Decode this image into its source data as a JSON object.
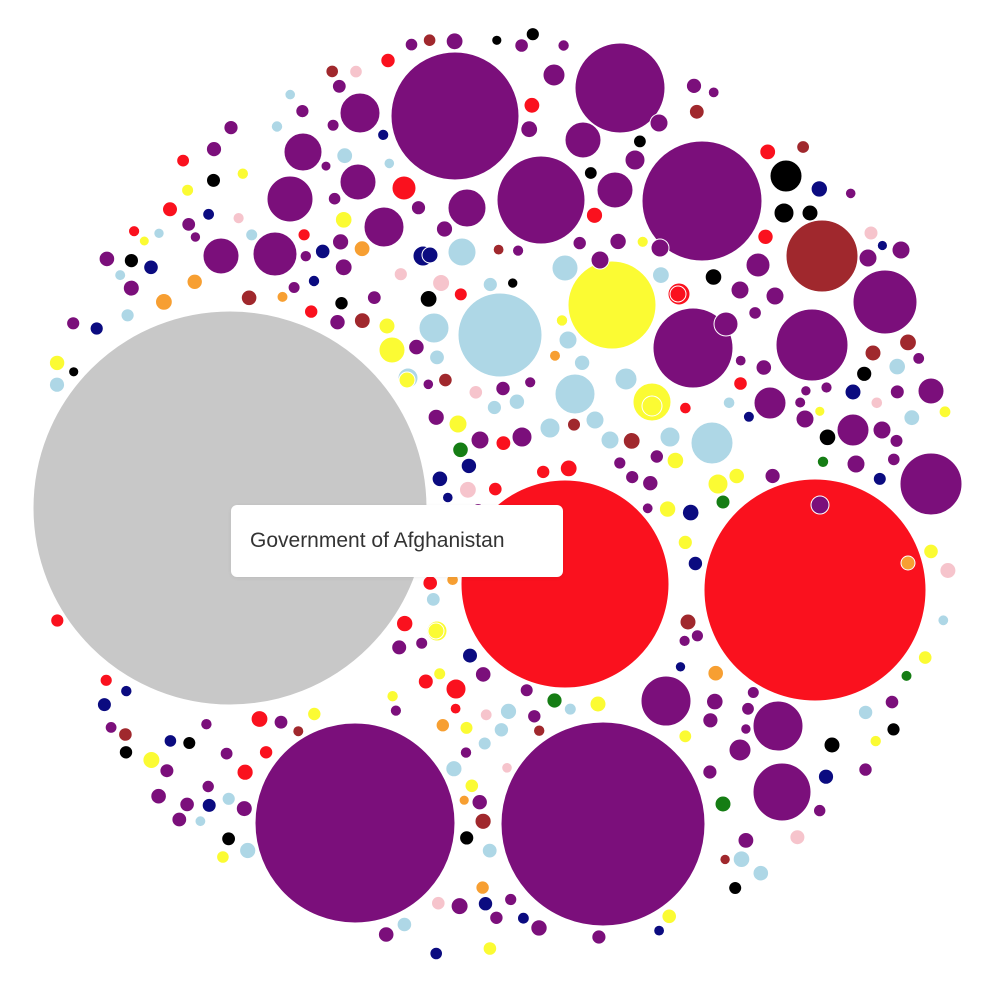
{
  "tooltip": {
    "text": "Government of Afghanistan"
  },
  "colors": {
    "gray": "#c8c8c8",
    "purple": "#7b0f7b",
    "red": "#fa111e",
    "yellow": "#fbfb33",
    "lightblue": "#aed7e6",
    "navy": "#0b0b80",
    "brown": "#a0282d",
    "black": "#000000",
    "pink": "#f6c4cc",
    "orange": "#f79f32",
    "green": "#157d14"
  },
  "chart_data": {
    "type": "bubble",
    "title": "",
    "hovered": "Government of Afghanistan",
    "bubbles": [
      {
        "id": "government-of-afghanistan",
        "color": "gray",
        "size": 197
      },
      {
        "color": "red",
        "size": 111
      },
      {
        "color": "red",
        "size": 104
      },
      {
        "color": "purple",
        "size": 102
      },
      {
        "color": "purple",
        "size": 100
      },
      {
        "color": "purple",
        "size": 64
      },
      {
        "color": "purple",
        "size": 60
      },
      {
        "color": "purple",
        "size": 45
      },
      {
        "color": "purple",
        "size": 44
      },
      {
        "color": "yellow",
        "size": 44
      },
      {
        "color": "lightblue",
        "size": 42
      },
      {
        "color": "purple",
        "size": 40
      },
      {
        "color": "brown",
        "size": 36
      },
      {
        "color": "purple",
        "size": 36
      },
      {
        "color": "purple",
        "size": 32
      },
      {
        "color": "purple",
        "size": 31
      },
      {
        "color": "purple",
        "size": 29
      },
      {
        "color": "purple",
        "size": 25
      },
      {
        "color": "purple",
        "size": 25
      },
      {
        "color": "purple",
        "size": 23
      },
      {
        "color": "purple",
        "size": 22
      },
      {
        "color": "lightblue",
        "size": 21
      },
      {
        "color": "purple",
        "size": 20
      },
      {
        "color": "purple",
        "size": 20
      },
      {
        "color": "lightblue",
        "size": 20
      },
      {
        "color": "yellow",
        "size": 19
      },
      {
        "color": "purple",
        "size": 19
      },
      {
        "color": "purple",
        "size": 19
      },
      {
        "color": "purple",
        "size": 18
      },
      {
        "color": "purple",
        "size": 18
      },
      {
        "color": "purple",
        "size": 18
      },
      {
        "color": "purple",
        "size": 18
      },
      {
        "color": "purple",
        "size": 16
      },
      {
        "color": "black",
        "size": 16
      },
      {
        "color": "purple",
        "size": 16
      },
      {
        "color": "lightblue",
        "size": 15
      },
      {
        "color": "lightblue",
        "size": 14
      },
      {
        "color": "red",
        "size": 12
      },
      {
        "color": "yellow",
        "size": 13
      },
      {
        "color": "lightblue",
        "size": 13
      },
      {
        "color": "purple",
        "size": 13
      },
      {
        "color": "purple",
        "size": 12
      },
      {
        "color": "purple",
        "size": 12
      },
      {
        "color": "red",
        "size": 11
      },
      {
        "color": "red",
        "size": 10
      },
      {
        "color": "navy",
        "size": 10
      },
      {
        "color": "black",
        "size": 10
      },
      {
        "color": "lightblue",
        "size": 10
      },
      {
        "color": "yellow",
        "size": 10
      },
      {
        "color": "purple",
        "size": 11
      },
      {
        "color": "purple",
        "size": 11
      },
      {
        "color": "lightblue",
        "size": 11
      },
      {
        "color": "lightblue",
        "size": 10
      },
      {
        "color": "lightblue",
        "size": 10
      },
      {
        "color": "yellow",
        "size": 10
      },
      {
        "color": "yellow",
        "size": 10
      },
      {
        "color": "yellow",
        "size": 9
      },
      {
        "color": "purple",
        "size": 10
      },
      {
        "color": "purple",
        "size": 10
      },
      {
        "color": "purple",
        "size": 9
      },
      {
        "color": "purple",
        "size": 9
      },
      {
        "color": "purple",
        "size": 9
      },
      {
        "color": "purple",
        "size": 9
      },
      {
        "color": "purple",
        "size": 9
      },
      {
        "color": "purple",
        "size": 9
      },
      {
        "color": "purple",
        "size": 9
      },
      {
        "color": "purple",
        "size": 9
      },
      {
        "color": "purple",
        "size": 9
      },
      {
        "color": "purple",
        "size": 9
      },
      {
        "color": "purple",
        "size": 9
      },
      {
        "color": "purple",
        "size": 9
      },
      {
        "color": "lightblue",
        "size": 9
      },
      {
        "color": "lightblue",
        "size": 9
      },
      {
        "color": "lightblue",
        "size": 9
      },
      {
        "color": "navy",
        "size": 8
      },
      {
        "color": "navy",
        "size": 8
      },
      {
        "color": "brown",
        "size": 8
      },
      {
        "color": "brown",
        "size": 8
      },
      {
        "color": "green",
        "size": 8
      },
      {
        "color": "green",
        "size": 7
      },
      {
        "color": "yellow",
        "size": 8
      },
      {
        "color": "yellow",
        "size": 8
      },
      {
        "color": "yellow",
        "size": 8
      },
      {
        "color": "yellow",
        "size": 8
      },
      {
        "color": "red",
        "size": 8
      },
      {
        "color": "orange",
        "size": 7
      },
      {
        "color": "black",
        "size": 8
      },
      {
        "color": "black",
        "size": 8
      },
      {
        "color": "pink",
        "size": 7
      }
    ],
    "filler_counts": {
      "purple": 90,
      "yellow": 26,
      "lightblue": 34,
      "navy": 26,
      "red": 26,
      "brown": 16,
      "black": 20,
      "pink": 12,
      "orange": 10,
      "green": 4
    }
  }
}
